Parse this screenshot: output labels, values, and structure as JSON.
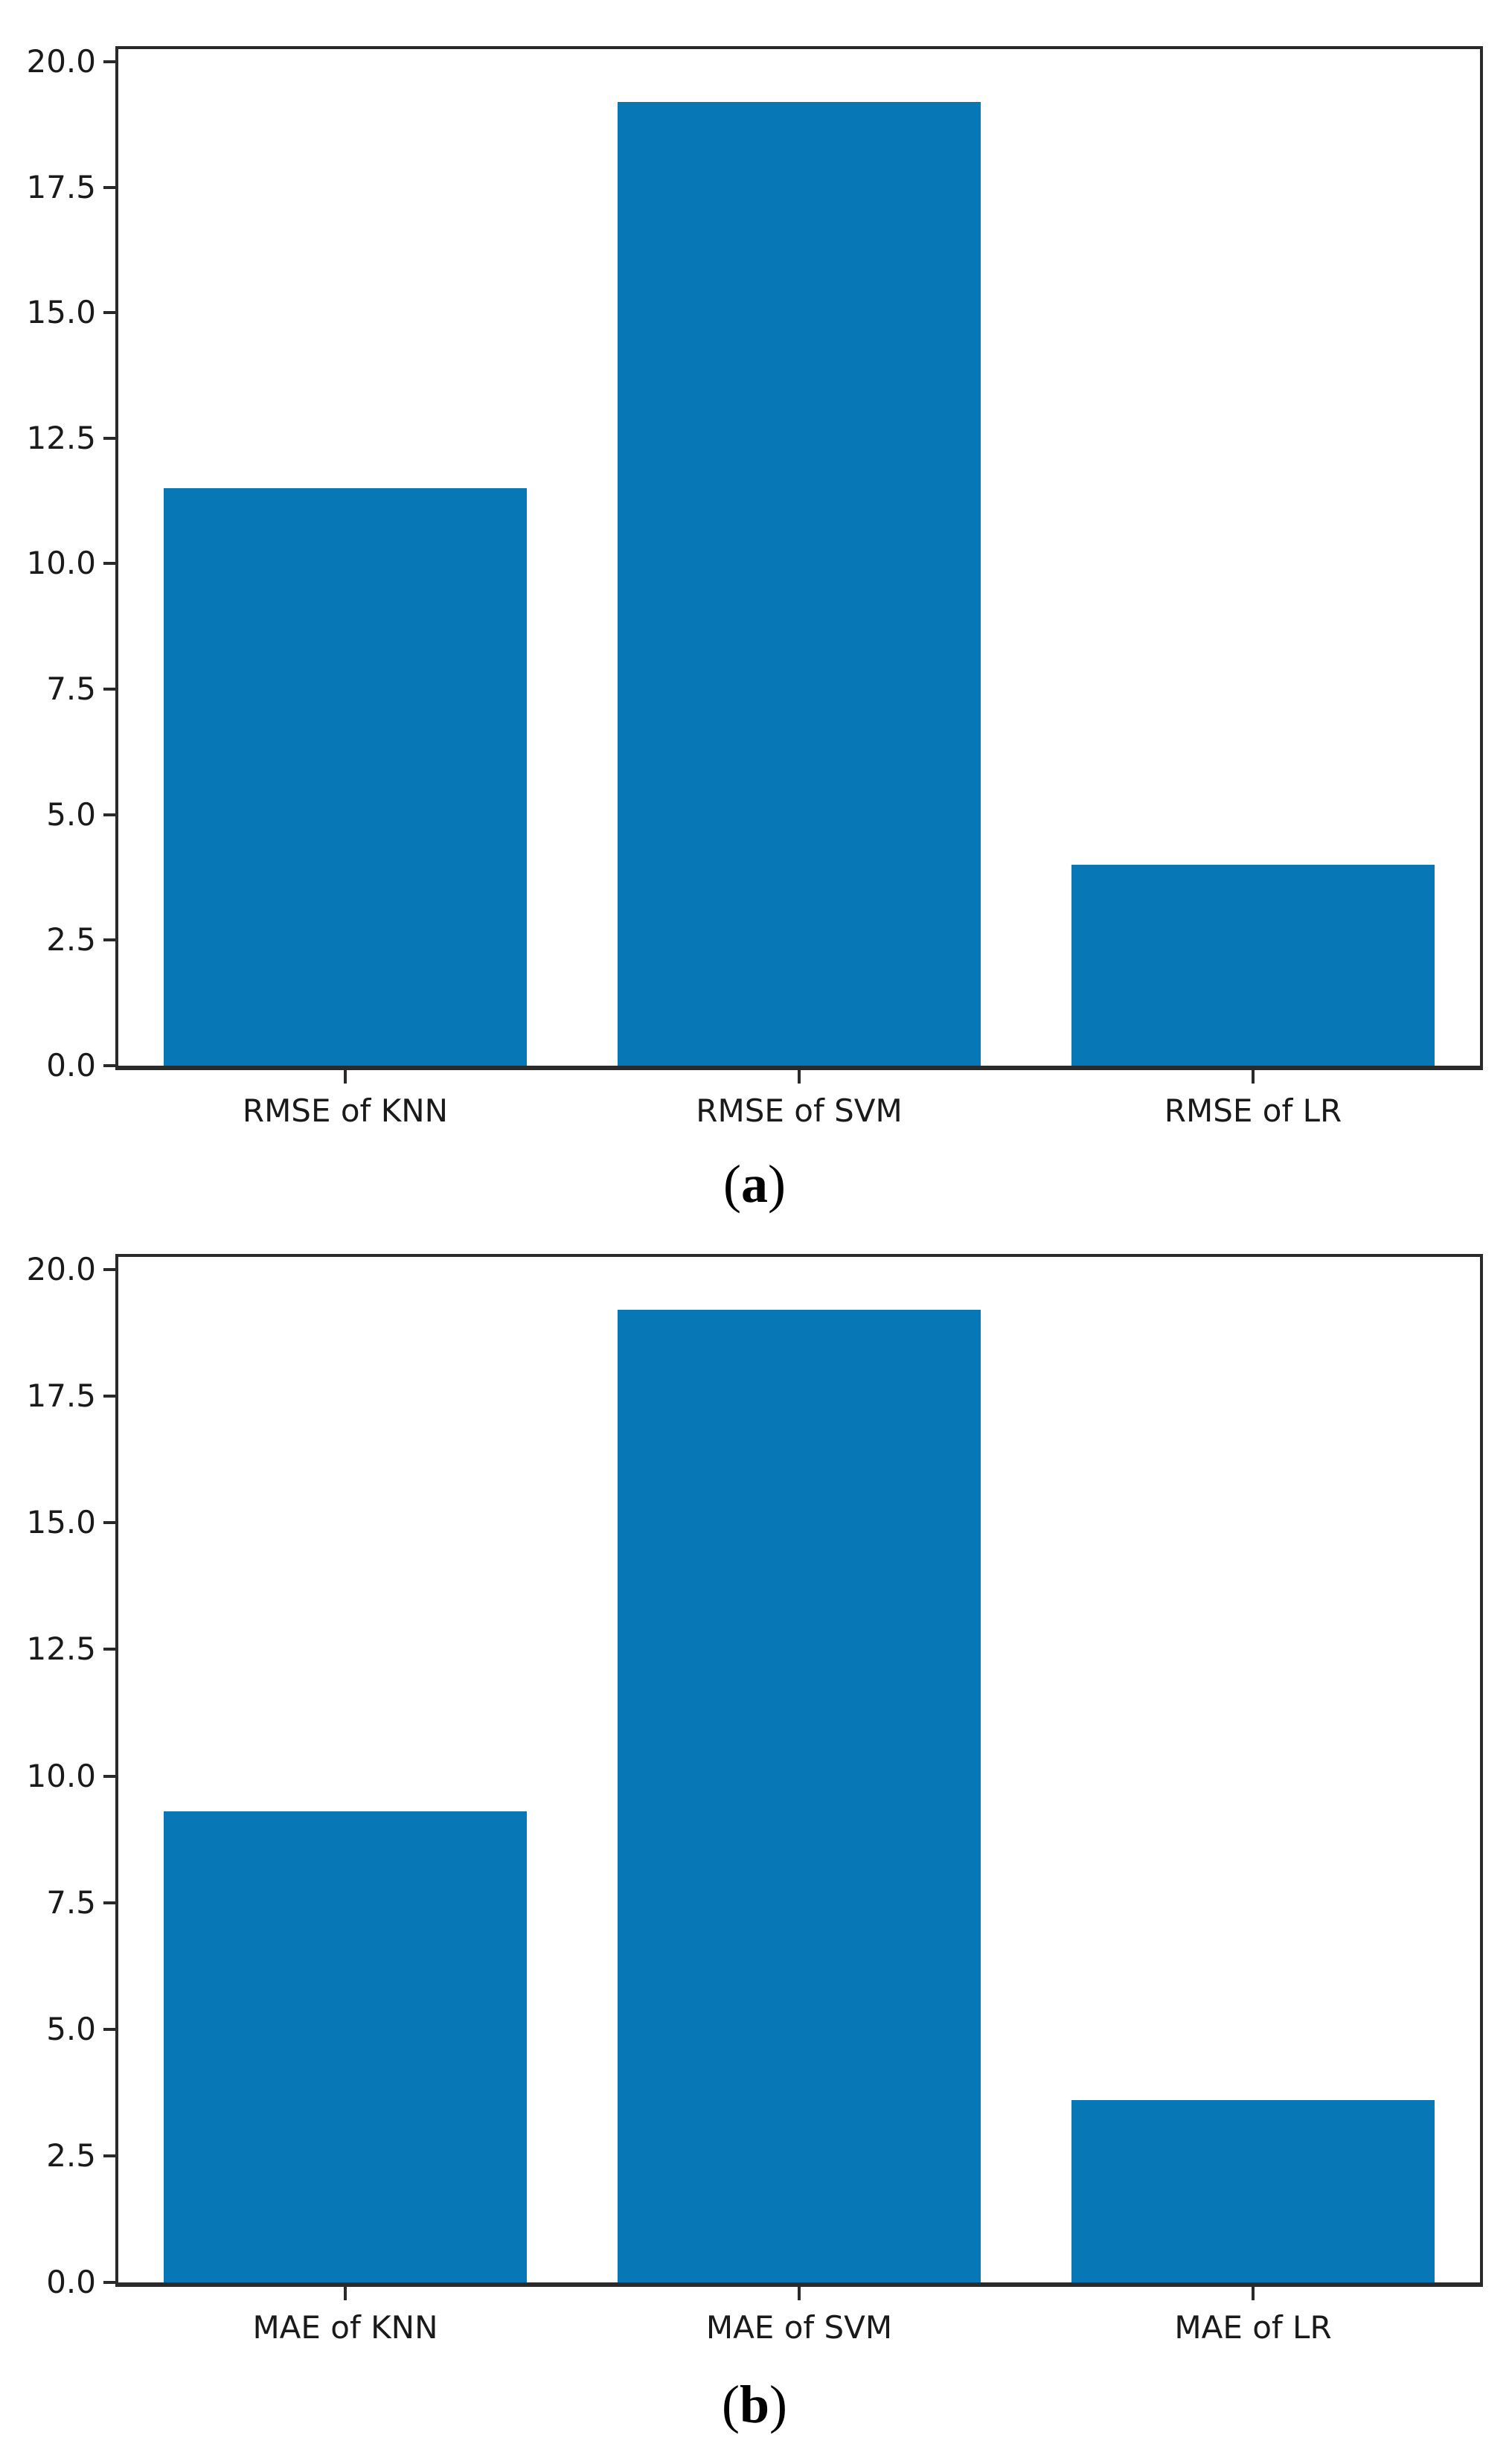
{
  "figure": {
    "background": "#ffffff",
    "axis_color": "#2a2a2a",
    "text_color": "#1a1a1a"
  },
  "chart_data": [
    {
      "type": "bar",
      "panel": "a",
      "title": "",
      "xlabel": "",
      "ylabel": "",
      "categories": [
        "RMSE of KNN",
        "RMSE of SVM",
        "RMSE of LR"
      ],
      "values": [
        11.5,
        19.2,
        4.0
      ],
      "yticks": [
        "0.0",
        "2.5",
        "5.0",
        "7.5",
        "10.0",
        "12.5",
        "15.0",
        "17.5",
        "20.0"
      ],
      "ylim": [
        0,
        20.25
      ],
      "grid": false,
      "legend": "none",
      "bar_color": "#0778b5",
      "bar_width_fraction": 0.8,
      "caption": {
        "open": "(",
        "letter": "a",
        "close": ")"
      }
    },
    {
      "type": "bar",
      "panel": "b",
      "title": "",
      "xlabel": "",
      "ylabel": "",
      "categories": [
        "MAE of KNN",
        "MAE of SVM",
        "MAE of LR"
      ],
      "values": [
        9.3,
        19.2,
        3.6
      ],
      "yticks": [
        "0.0",
        "2.5",
        "5.0",
        "7.5",
        "10.0",
        "12.5",
        "15.0",
        "17.5",
        "20.0"
      ],
      "ylim": [
        0,
        20.25
      ],
      "grid": false,
      "legend": "none",
      "bar_color": "#0778b5",
      "bar_width_fraction": 0.8,
      "caption": {
        "open": "(",
        "letter": "b",
        "close": ")"
      }
    }
  ]
}
